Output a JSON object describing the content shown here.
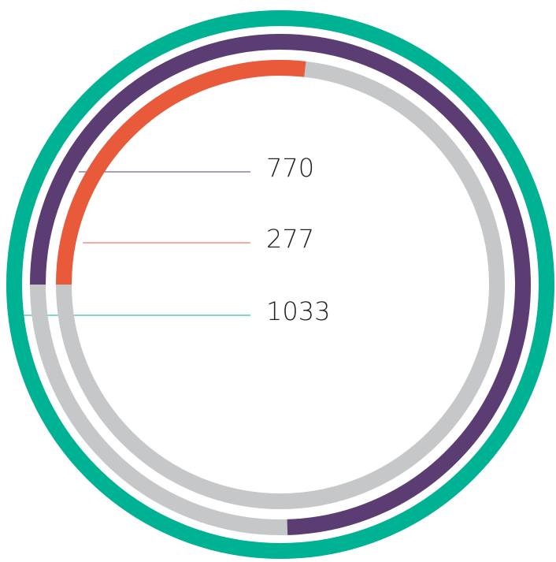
{
  "chart_data": {
    "type": "radial_bar",
    "values": [
      1033,
      770,
      277
    ],
    "colors": [
      "#00b294",
      "#5c3d73",
      "#e85a3a"
    ],
    "track_color": "#c6c7c9",
    "xlim": [
      0,
      1033
    ]
  }
}
